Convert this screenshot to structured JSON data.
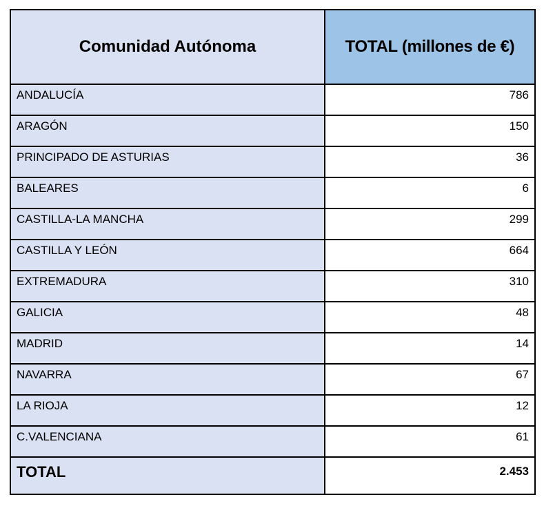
{
  "colors": {
    "header_left": "#dae1f2",
    "header_right": "#9dc3e6",
    "name_cell": "#dae1f2"
  },
  "headers": {
    "region": "Comunidad Autónoma",
    "total": "TOTAL (millones de €)"
  },
  "rows": [
    {
      "name": "ANDALUCÍA",
      "value": "786"
    },
    {
      "name": "ARAGÓN",
      "value": "150"
    },
    {
      "name": "PRINCIPADO DE ASTURIAS",
      "value": "36"
    },
    {
      "name": "BALEARES",
      "value": "6"
    },
    {
      "name": "CASTILLA-LA MANCHA",
      "value": "299"
    },
    {
      "name": "CASTILLA Y LEÓN",
      "value": "664"
    },
    {
      "name": "EXTREMADURA",
      "value": "310"
    },
    {
      "name": "GALICIA",
      "value": "48"
    },
    {
      "name": "MADRID",
      "value": "14"
    },
    {
      "name": "NAVARRA",
      "value": "67"
    },
    {
      "name": "LA RIOJA",
      "value": "12"
    },
    {
      "name": "C.VALENCIANA",
      "value": "61"
    }
  ],
  "total": {
    "label": "TOTAL",
    "value": "2.453"
  }
}
